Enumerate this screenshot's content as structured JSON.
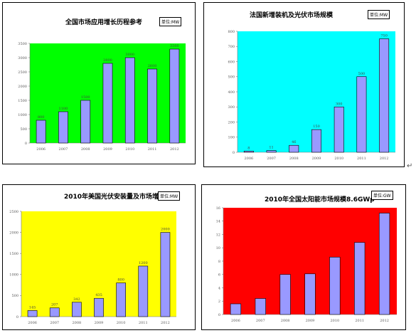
{
  "chart_data": [
    {
      "type": "bar",
      "title": "全国市场应用增长历程参考",
      "badge": "单位:MW",
      "background": "#00ff00",
      "bar_color": "#9999ff",
      "categories": [
        "2006",
        "2007",
        "2008",
        "2009",
        "2010",
        "2011",
        "2012"
      ],
      "values": [
        800,
        1100,
        1500,
        2800,
        3000,
        2600,
        3300
      ],
      "data_labels": [
        "800",
        "1100",
        "1500",
        "2800",
        "3000",
        "2600",
        "3300"
      ],
      "ylim": [
        0,
        3500
      ],
      "yticks": [
        "0",
        "500",
        "1000",
        "1500",
        "2000",
        "2500",
        "3000",
        "3500"
      ]
    },
    {
      "type": "bar",
      "title": "法国新增装机及光伏市场规模",
      "badge": "单位:MW",
      "background": "#00ffff",
      "bar_color": "#9999ff",
      "categories": [
        "2006",
        "2007",
        "2008",
        "2009",
        "2010",
        "2011",
        "2012"
      ],
      "values": [
        8,
        11,
        46,
        150,
        300,
        500,
        750
      ],
      "data_labels": [
        "8",
        "11",
        "46",
        "150",
        "300",
        "500",
        "750"
      ],
      "ylim": [
        0,
        800
      ],
      "yticks": [
        "0",
        "100",
        "200",
        "300",
        "400",
        "500",
        "600",
        "700",
        "800"
      ]
    },
    {
      "type": "bar",
      "title": "2010年美国光伏安装量及市场增长",
      "badge": "单位:MW",
      "background": "#ffff00",
      "bar_color": "#9999ff",
      "categories": [
        "2006",
        "2007",
        "2008",
        "2009",
        "2010",
        "2011",
        "2012"
      ],
      "values": [
        145,
        207,
        342,
        435,
        800,
        1200,
        2000
      ],
      "data_labels": [
        "145",
        "207",
        "342",
        "435",
        "800",
        "1200",
        "2000"
      ],
      "ylim": [
        0,
        2500
      ],
      "yticks": [
        "0",
        "500",
        "1000",
        "1500",
        "2000",
        "2500"
      ]
    },
    {
      "type": "bar",
      "title": "2010年全国太阳能市场规模8.6GWp",
      "badge": "单位:GW",
      "background": "#ff0000",
      "bar_color": "#9999ff",
      "categories": [
        "2006",
        "2007",
        "2008",
        "2009",
        "2010",
        "2011",
        "2012"
      ],
      "values": [
        1.6,
        2.4,
        6.0,
        6.1,
        8.6,
        10.8,
        15.2
      ],
      "data_labels": [],
      "ylim": [
        0,
        16
      ],
      "yticks": [
        "0",
        "2",
        "4",
        "6",
        "8",
        "10",
        "12",
        "14",
        "16"
      ]
    }
  ],
  "return_mark": "↵"
}
